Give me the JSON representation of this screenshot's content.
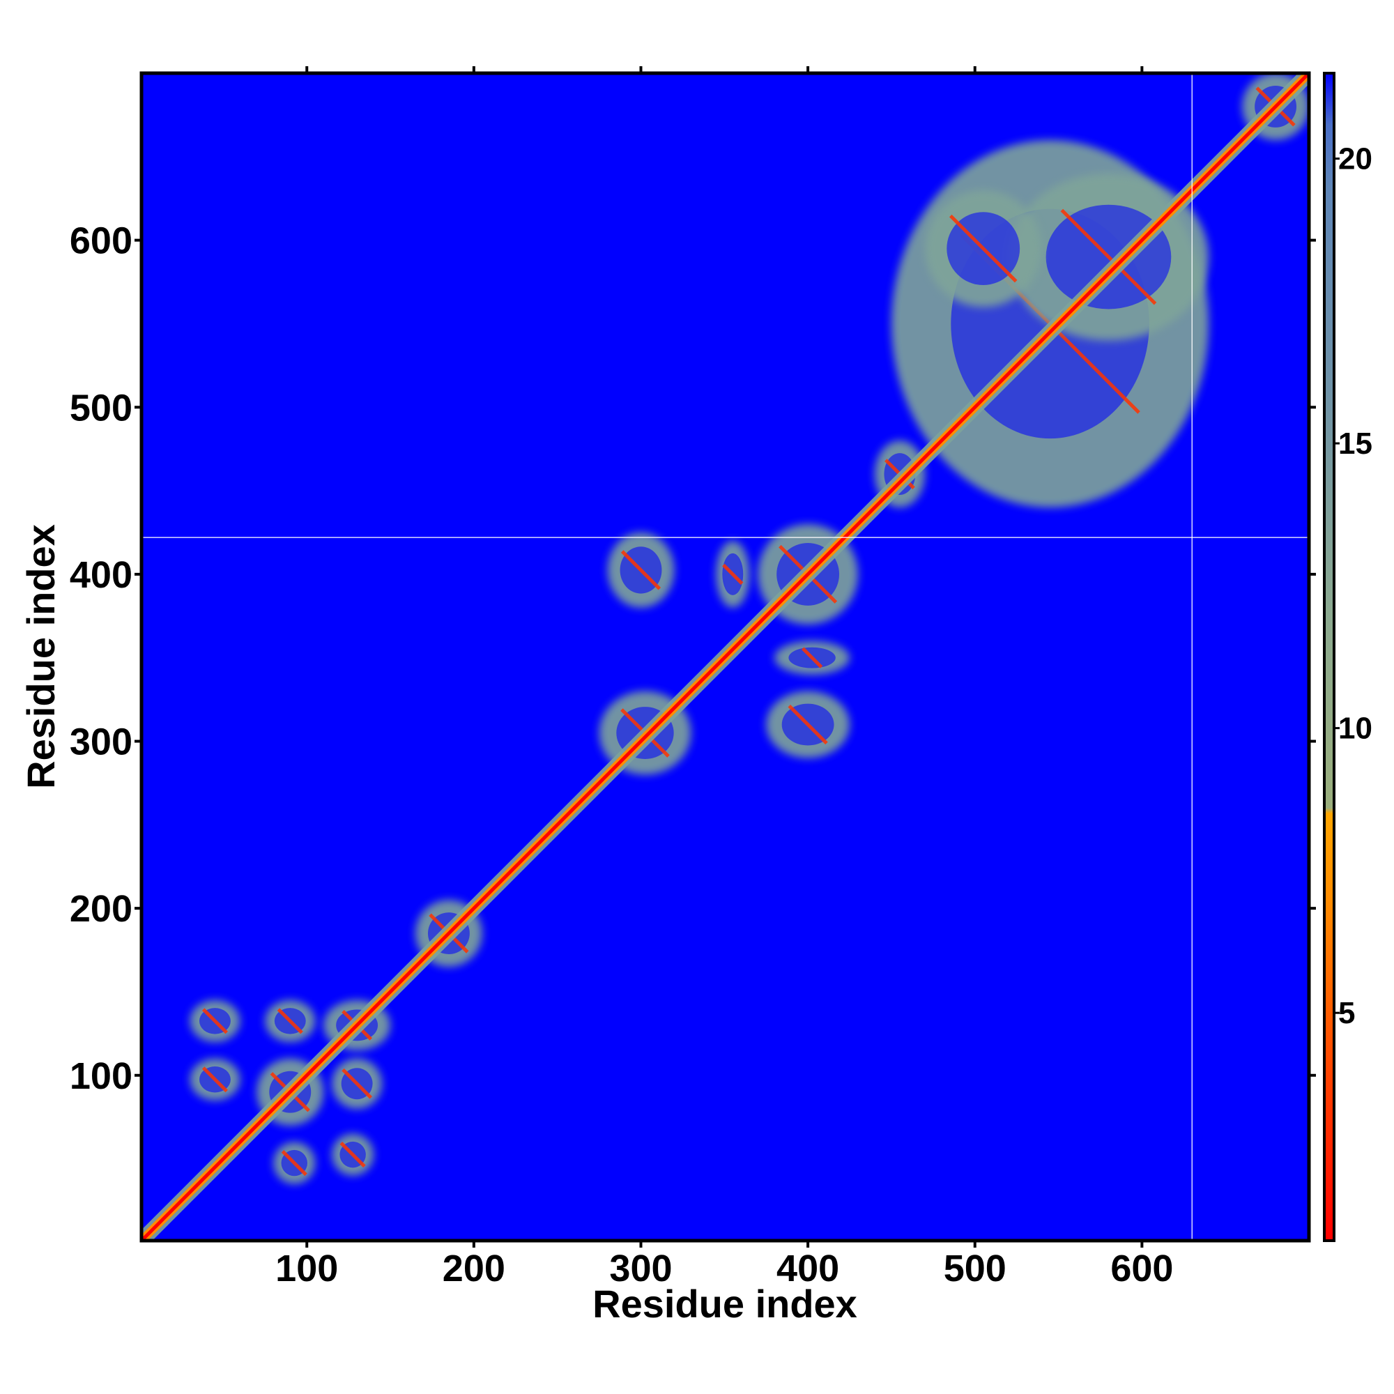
{
  "chart_data": {
    "type": "heatmap",
    "title": "",
    "xlabel": "Residue index",
    "ylabel": "Residue index",
    "xlim": [
      1,
      700
    ],
    "ylim": [
      1,
      700
    ],
    "xticks": [
      100,
      200,
      300,
      400,
      500,
      600
    ],
    "xtick_labels": [
      "100",
      "200",
      "300",
      "400",
      "500",
      "600"
    ],
    "yticks": [
      100,
      200,
      300,
      400,
      500,
      600
    ],
    "ytick_labels": [
      "100",
      "200",
      "300",
      "400",
      "500",
      "600"
    ],
    "grid": false,
    "legend": "none",
    "colorbar": {
      "range": [
        1,
        21.5
      ],
      "ticks": [
        5,
        10,
        15,
        20
      ],
      "tick_labels": [
        "5",
        "10",
        "15",
        "20"
      ],
      "placement": "right",
      "stops": [
        {
          "value": 1,
          "color": "#ff0000"
        },
        {
          "value": 4,
          "color": "#ff4500"
        },
        {
          "value": 7,
          "color": "#ff8c00"
        },
        {
          "value": 8.5,
          "color": "#ffa500"
        },
        {
          "value": 8.6,
          "color": "#9aae7c"
        },
        {
          "value": 12,
          "color": "#8caa90"
        },
        {
          "value": 16,
          "color": "#6e92a8"
        },
        {
          "value": 19.5,
          "color": "#5f86b8"
        },
        {
          "value": 20.6,
          "color": "#4a6fc8"
        },
        {
          "value": 21.5,
          "color": "#0000ff"
        }
      ]
    },
    "colors": {
      "far": "#0000ff",
      "mid": "#7fa49a",
      "contact": "#ff3300",
      "diagonal": "#ff0000"
    },
    "marker_lines": {
      "x": 630,
      "y": 422,
      "color": "#ffffff"
    },
    "diagonal": {
      "from": 1,
      "to": 700
    },
    "contact_regions": [
      {
        "x": [
          30,
          60
        ],
        "y": [
          120,
          145
        ]
      },
      {
        "x": [
          30,
          60
        ],
        "y": [
          85,
          110
        ]
      },
      {
        "x": [
          75,
          105
        ],
        "y": [
          120,
          145
        ]
      },
      {
        "x": [
          70,
          110
        ],
        "y": [
          70,
          110
        ]
      },
      {
        "x": [
          110,
          150
        ],
        "y": [
          115,
          145
        ]
      },
      {
        "x": [
          115,
          145
        ],
        "y": [
          80,
          110
        ]
      },
      {
        "x": [
          80,
          105
        ],
        "y": [
          35,
          60
        ]
      },
      {
        "x": [
          115,
          140
        ],
        "y": [
          40,
          65
        ]
      },
      {
        "x": [
          165,
          205
        ],
        "y": [
          165,
          205
        ]
      },
      {
        "x": [
          275,
          330
        ],
        "y": [
          280,
          330
        ]
      },
      {
        "x": [
          280,
          320
        ],
        "y": [
          380,
          425
        ]
      },
      {
        "x": [
          345,
          365
        ],
        "y": [
          380,
          420
        ]
      },
      {
        "x": [
          370,
          430
        ],
        "y": [
          370,
          430
        ]
      },
      {
        "x": [
          380,
          425
        ],
        "y": [
          340,
          360
        ]
      },
      {
        "x": [
          375,
          425
        ],
        "y": [
          290,
          330
        ]
      },
      {
        "x": [
          440,
          470
        ],
        "y": [
          440,
          480
        ]
      },
      {
        "x": [
          450,
          640
        ],
        "y": [
          440,
          660
        ]
      },
      {
        "x": [
          520,
          640
        ],
        "y": [
          540,
          640
        ]
      },
      {
        "x": [
          470,
          540
        ],
        "y": [
          560,
          630
        ]
      },
      {
        "x": [
          660,
          700
        ],
        "y": [
          660,
          700
        ]
      }
    ]
  }
}
